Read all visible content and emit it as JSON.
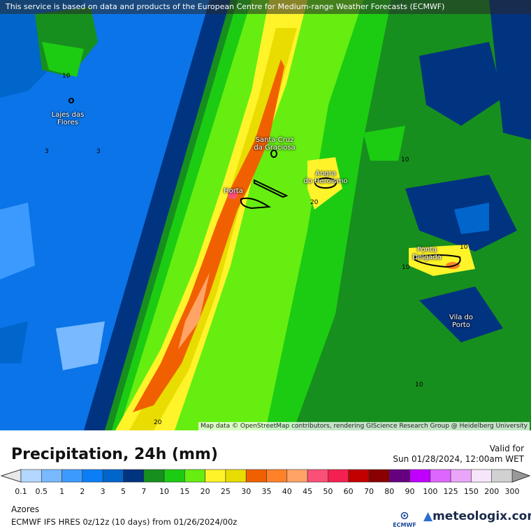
{
  "header": {
    "notice": "This service is based on data and products of the European Centre for Medium-range Weather Forecasts (ECMWF)"
  },
  "map": {
    "attribution": "Map data © OpenStreetMap contributors, rendering GIScience Research Group @ Heidelberg University",
    "cities": [
      {
        "name": "Lajes das\nFlores",
        "l1": "Lajes das",
        "l2": "Flores"
      },
      {
        "name": "Santa Cruz da Graciosa",
        "l1": "Santa Cruz",
        "l2": "da Graciosa"
      },
      {
        "name": "Horta",
        "l1": "Horta",
        "l2": ""
      },
      {
        "name": "Angra do Heroísmo",
        "l1": "Angra",
        "l2": "do Heroísmo"
      },
      {
        "name": "Ponta Delgada",
        "l1": "Ponta",
        "l2": "Delgada"
      },
      {
        "name": "Vila do Porto",
        "l1": "Vila do",
        "l2": "Porto"
      }
    ],
    "contour_labels": [
      "10",
      "3",
      "3",
      "10",
      "20",
      "10",
      "10",
      "10",
      "20"
    ]
  },
  "legend": {
    "title": "Precipitation, 24h (mm)",
    "valid_label": "Valid for",
    "valid_time": "Sun 01/28/2024, 12:00am WET",
    "under_color": "#e8e8e8",
    "over_color": "#999999",
    "colors": [
      "#b4d7ff",
      "#78b9ff",
      "#3c9aff",
      "#0a7ff5",
      "#0066cc",
      "#003380",
      "#178f1e",
      "#1ccc12",
      "#66ee11",
      "#fff32a",
      "#e8dc00",
      "#f06000",
      "#ff8229",
      "#ffa366",
      "#fa5078",
      "#f5204f",
      "#c20000",
      "#8a0000",
      "#66007f",
      "#c000ff",
      "#dd66ff",
      "#eaa5fb",
      "#f7e6fb",
      "#d1d1d1"
    ],
    "labels": [
      "0.1",
      "0.5",
      "1",
      "2",
      "3",
      "5",
      "7",
      "10",
      "15",
      "20",
      "25",
      "30",
      "35",
      "40",
      "45",
      "50",
      "60",
      "70",
      "80",
      "90",
      "100",
      "125",
      "150",
      "200",
      "300"
    ]
  },
  "footer": {
    "region": "Azores",
    "model": "ECMWF IFS HRES 0z/12z (10 days) from  01/26/2024/00z",
    "ecmwf_logo": "ECMWF",
    "brand": "meteologix.com"
  }
}
